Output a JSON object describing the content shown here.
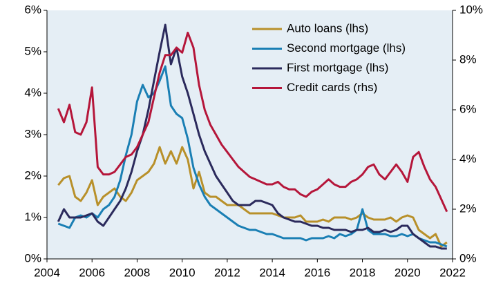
{
  "chart_data": {
    "type": "line",
    "x": [
      2004.5,
      2004.75,
      2005,
      2005.25,
      2005.5,
      2005.75,
      2006,
      2006.25,
      2006.5,
      2006.75,
      2007,
      2007.25,
      2007.5,
      2007.75,
      2008,
      2008.25,
      2008.5,
      2008.75,
      2009,
      2009.25,
      2009.5,
      2009.75,
      2010,
      2010.25,
      2010.5,
      2010.75,
      2011,
      2011.25,
      2011.5,
      2011.75,
      2012,
      2012.25,
      2012.5,
      2012.75,
      2013,
      2013.25,
      2013.5,
      2013.75,
      2014,
      2014.25,
      2014.5,
      2014.75,
      2015,
      2015.25,
      2015.5,
      2015.75,
      2016,
      2016.25,
      2016.5,
      2016.75,
      2017,
      2017.25,
      2017.5,
      2017.75,
      2018,
      2018.25,
      2018.5,
      2018.75,
      2019,
      2019.25,
      2019.5,
      2019.75,
      2020,
      2020.25,
      2020.5,
      2020.75,
      2021,
      2021.25,
      2021.5,
      2021.75
    ],
    "series": [
      {
        "name": "Auto loans (lhs)",
        "color": "#b8902a",
        "values": [
          1.78,
          1.95,
          2.0,
          1.5,
          1.4,
          1.6,
          1.9,
          1.3,
          1.5,
          1.6,
          1.7,
          1.5,
          1.4,
          1.6,
          1.9,
          2.0,
          2.1,
          2.3,
          2.7,
          2.3,
          2.6,
          2.3,
          2.7,
          2.4,
          1.7,
          2.1,
          1.6,
          1.5,
          1.5,
          1.4,
          1.3,
          1.3,
          1.3,
          1.2,
          1.1,
          1.1,
          1.1,
          1.1,
          1.1,
          1.05,
          1.0,
          1.0,
          1.0,
          1.05,
          0.9,
          0.9,
          0.9,
          0.95,
          0.9,
          1.0,
          1.0,
          1.0,
          0.95,
          1.0,
          1.1,
          1.0,
          0.95,
          0.95,
          0.95,
          1.0,
          0.9,
          1.0,
          1.05,
          1.0,
          0.7,
          0.6,
          0.5,
          0.6,
          0.3,
          0.4
        ]
      },
      {
        "name": "Second mortgage (lhs)",
        "color": "#1a7fb4",
        "values": [
          0.85,
          0.8,
          0.75,
          1.0,
          1.05,
          1.0,
          1.1,
          1.0,
          1.2,
          1.3,
          1.5,
          1.9,
          2.5,
          3.0,
          3.8,
          4.2,
          3.9,
          4.0,
          4.3,
          4.65,
          3.7,
          3.5,
          3.4,
          2.9,
          2.2,
          1.8,
          1.5,
          1.3,
          1.2,
          1.1,
          1.0,
          0.9,
          0.8,
          0.75,
          0.7,
          0.7,
          0.65,
          0.6,
          0.6,
          0.55,
          0.5,
          0.5,
          0.5,
          0.5,
          0.45,
          0.5,
          0.5,
          0.5,
          0.55,
          0.5,
          0.6,
          0.55,
          0.6,
          0.7,
          1.2,
          0.7,
          0.6,
          0.6,
          0.6,
          0.55,
          0.55,
          0.6,
          0.55,
          0.6,
          0.5,
          0.45,
          0.4,
          0.4,
          0.35,
          0.3
        ]
      },
      {
        "name": "First mortgage (lhs)",
        "color": "#2b2a5c",
        "values": [
          0.9,
          1.2,
          1.0,
          1.0,
          1.0,
          1.05,
          1.1,
          0.9,
          0.8,
          1.0,
          1.2,
          1.4,
          1.7,
          2.1,
          2.6,
          3.0,
          3.6,
          4.3,
          5.0,
          5.65,
          4.7,
          5.1,
          4.4,
          4.0,
          3.5,
          3.0,
          2.6,
          2.3,
          2.0,
          1.8,
          1.6,
          1.4,
          1.3,
          1.3,
          1.3,
          1.4,
          1.4,
          1.35,
          1.3,
          1.1,
          1.0,
          0.95,
          0.9,
          0.9,
          0.85,
          0.8,
          0.8,
          0.75,
          0.75,
          0.7,
          0.7,
          0.7,
          0.65,
          0.7,
          0.7,
          0.75,
          0.65,
          0.65,
          0.7,
          0.65,
          0.7,
          0.8,
          0.8,
          0.6,
          0.5,
          0.4,
          0.3,
          0.3,
          0.25,
          0.25
        ]
      },
      {
        "name": "Credit cards (rhs)",
        "color": "#b5163a",
        "axis": "y2",
        "values": [
          6.05,
          5.5,
          6.2,
          5.1,
          5.0,
          5.5,
          6.9,
          3.7,
          3.4,
          3.4,
          3.5,
          3.8,
          4.1,
          4.2,
          4.5,
          5.0,
          5.5,
          6.5,
          7.5,
          8.2,
          8.2,
          8.5,
          8.3,
          9.1,
          8.5,
          7.0,
          6.0,
          5.4,
          5.0,
          4.6,
          4.3,
          4.0,
          3.7,
          3.5,
          3.3,
          3.2,
          3.1,
          3.0,
          3.0,
          3.1,
          2.9,
          2.8,
          2.8,
          2.6,
          2.5,
          2.7,
          2.8,
          3.0,
          3.2,
          3.0,
          2.9,
          2.9,
          3.1,
          3.2,
          3.4,
          3.7,
          3.8,
          3.4,
          3.2,
          3.5,
          3.8,
          3.5,
          3.1,
          4.1,
          4.3,
          3.7,
          3.2,
          2.9,
          2.4,
          1.9
        ]
      }
    ],
    "xlim": [
      2004,
      2022
    ],
    "xticks": [
      2004,
      2006,
      2008,
      2010,
      2012,
      2014,
      2016,
      2018,
      2020,
      2022
    ],
    "ylim": [
      0,
      6
    ],
    "yticks": [
      {
        "value": 0,
        "label": "0%"
      },
      {
        "value": 1,
        "label": "1%"
      },
      {
        "value": 2,
        "label": "2%"
      },
      {
        "value": 3,
        "label": "3%"
      },
      {
        "value": 4,
        "label": "4%"
      },
      {
        "value": 5,
        "label": "5%"
      },
      {
        "value": 6,
        "label": "6%"
      }
    ],
    "y2lim": [
      0,
      10
    ],
    "y2ticks": [
      {
        "value": 0,
        "label": "0%"
      },
      {
        "value": 2,
        "label": "2%"
      },
      {
        "value": 4,
        "label": "4%"
      },
      {
        "value": 6,
        "label": "6%"
      },
      {
        "value": 8,
        "label": "8%"
      },
      {
        "value": 10,
        "label": "10%"
      }
    ],
    "legend": "upper right"
  }
}
